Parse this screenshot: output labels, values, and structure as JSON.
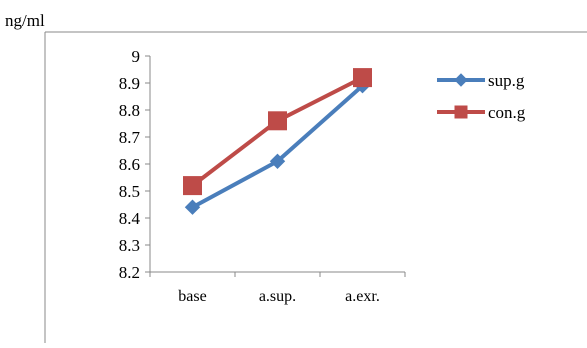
{
  "chart_data": {
    "type": "line",
    "ylabel": "ng/ml",
    "categories": [
      "base",
      "a.sup.",
      "a.exr."
    ],
    "yticks": [
      "9",
      "8.9",
      "8.8",
      "8.7",
      "8.6",
      "8.5",
      "8.4",
      "8.3",
      "8.2"
    ],
    "ylim": [
      8.2,
      9.0
    ],
    "grid": false,
    "legend_position": "right",
    "series": [
      {
        "name": "sup.g",
        "values": [
          8.44,
          8.61,
          8.89
        ],
        "color": "#4a7ebb",
        "marker": "diamond"
      },
      {
        "name": "con.g",
        "values": [
          8.52,
          8.76,
          8.92
        ],
        "color": "#be4b48",
        "marker": "square"
      }
    ]
  }
}
